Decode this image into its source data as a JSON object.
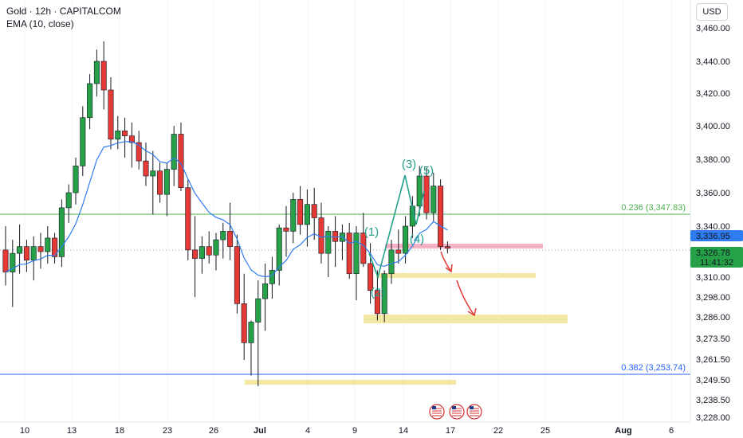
{
  "legend": {
    "symbol": "Gold · 12h · CAPITALCOM",
    "indicator": "EMA (10, close)"
  },
  "currency_button": "USD",
  "colors": {
    "up": "#26a148",
    "down": "#e53935",
    "ema": "#2f7bf0",
    "wave": "#22a08a",
    "fib_0236": "#4caf50",
    "fib_0382": "#2962ff",
    "zone_yellow": "#f2e7a3",
    "zone_pink": "#f5a8be",
    "arrow": "#e53935"
  },
  "chart_data": {
    "type": "candlestick",
    "x_tick_labels": [
      "10",
      "13",
      "18",
      "23",
      "26",
      "Jul",
      "4",
      "9",
      "14",
      "17",
      "22",
      "25",
      "Aug",
      "6"
    ],
    "y_tick_labels": [
      "3,460.00",
      "3,440.00",
      "3,420.00",
      "3,400.00",
      "3,380.00",
      "3,360.00",
      "3,340.00",
      "3,310.00",
      "3,298.00",
      "3,286.00",
      "3,273.50",
      "3,261.50",
      "3,249.50",
      "3,238.50",
      "3,228.00"
    ],
    "price_tags": [
      {
        "value": "3,336.95",
        "style": "ema"
      },
      {
        "value": "3,326.78",
        "sub": "11:41:32",
        "style": "last"
      }
    ],
    "fib_levels": [
      {
        "label": "0.236 (3,347.83)",
        "price": 3347.83
      },
      {
        "label": "0.382 (3,253.74)",
        "price": 3253.74
      }
    ],
    "wave_labels": [
      "(1)",
      "(2)",
      "(3)",
      "(4)",
      "(5)"
    ],
    "candles": [
      [
        3326,
        3340,
        3305,
        3313
      ],
      [
        3313,
        3332,
        3292,
        3324
      ],
      [
        3324,
        3341,
        3312,
        3328
      ],
      [
        3328,
        3332,
        3313,
        3320
      ],
      [
        3320,
        3334,
        3308,
        3328
      ],
      [
        3328,
        3336,
        3315,
        3325
      ],
      [
        3325,
        3340,
        3318,
        3333
      ],
      [
        3333,
        3336,
        3318,
        3322
      ],
      [
        3322,
        3356,
        3316,
        3351
      ],
      [
        3351,
        3365,
        3342,
        3360
      ],
      [
        3360,
        3381,
        3353,
        3376
      ],
      [
        3376,
        3412,
        3370,
        3405
      ],
      [
        3405,
        3432,
        3398,
        3426
      ],
      [
        3426,
        3447,
        3418,
        3440
      ],
      [
        3440,
        3452,
        3410,
        3422
      ],
      [
        3422,
        3430,
        3386,
        3392
      ],
      [
        3392,
        3406,
        3386,
        3397
      ],
      [
        3397,
        3405,
        3381,
        3394
      ],
      [
        3394,
        3402,
        3375,
        3390
      ],
      [
        3390,
        3397,
        3374,
        3379
      ],
      [
        3379,
        3390,
        3364,
        3370
      ],
      [
        3370,
        3385,
        3347,
        3373
      ],
      [
        3373,
        3378,
        3354,
        3359
      ],
      [
        3359,
        3378,
        3346,
        3374
      ],
      [
        3374,
        3400,
        3364,
        3395
      ],
      [
        3395,
        3402,
        3361,
        3363
      ],
      [
        3363,
        3368,
        3320,
        3326
      ],
      [
        3326,
        3346,
        3298,
        3321
      ],
      [
        3321,
        3334,
        3312,
        3328
      ],
      [
        3328,
        3337,
        3318,
        3323
      ],
      [
        3323,
        3336,
        3314,
        3332
      ],
      [
        3332,
        3342,
        3321,
        3337
      ],
      [
        3337,
        3354,
        3320,
        3328
      ],
      [
        3328,
        3335,
        3288,
        3294
      ],
      [
        3294,
        3312,
        3261,
        3271
      ],
      [
        3271,
        3284,
        3252,
        3283
      ],
      [
        3283,
        3308,
        3246,
        3297
      ],
      [
        3297,
        3318,
        3278,
        3306
      ],
      [
        3306,
        3322,
        3297,
        3314
      ],
      [
        3314,
        3341,
        3305,
        3339
      ],
      [
        3339,
        3352,
        3322,
        3337
      ],
      [
        3337,
        3360,
        3330,
        3356
      ],
      [
        3356,
        3364,
        3335,
        3341
      ],
      [
        3341,
        3362,
        3328,
        3353
      ],
      [
        3353,
        3363,
        3332,
        3345
      ],
      [
        3345,
        3354,
        3318,
        3324
      ],
      [
        3324,
        3340,
        3310,
        3337
      ],
      [
        3337,
        3346,
        3316,
        3331
      ],
      [
        3331,
        3341,
        3320,
        3336
      ],
      [
        3336,
        3342,
        3309,
        3312
      ],
      [
        3312,
        3340,
        3296,
        3336
      ],
      [
        3336,
        3348,
        3316,
        3318
      ],
      [
        3318,
        3330,
        3294,
        3302
      ],
      [
        3302,
        3314,
        3284,
        3288
      ],
      [
        3288,
        3314,
        3283,
        3312
      ],
      [
        3312,
        3332,
        3306,
        3326
      ],
      [
        3326,
        3338,
        3318,
        3324
      ],
      [
        3324,
        3346,
        3318,
        3340
      ],
      [
        3340,
        3358,
        3333,
        3352
      ],
      [
        3352,
        3376,
        3346,
        3370
      ],
      [
        3370,
        3375,
        3344,
        3348
      ],
      [
        3348,
        3372,
        3343,
        3364
      ],
      [
        3364,
        3368,
        3326,
        3328
      ],
      [
        3328,
        3331,
        3324,
        3327
      ]
    ]
  }
}
